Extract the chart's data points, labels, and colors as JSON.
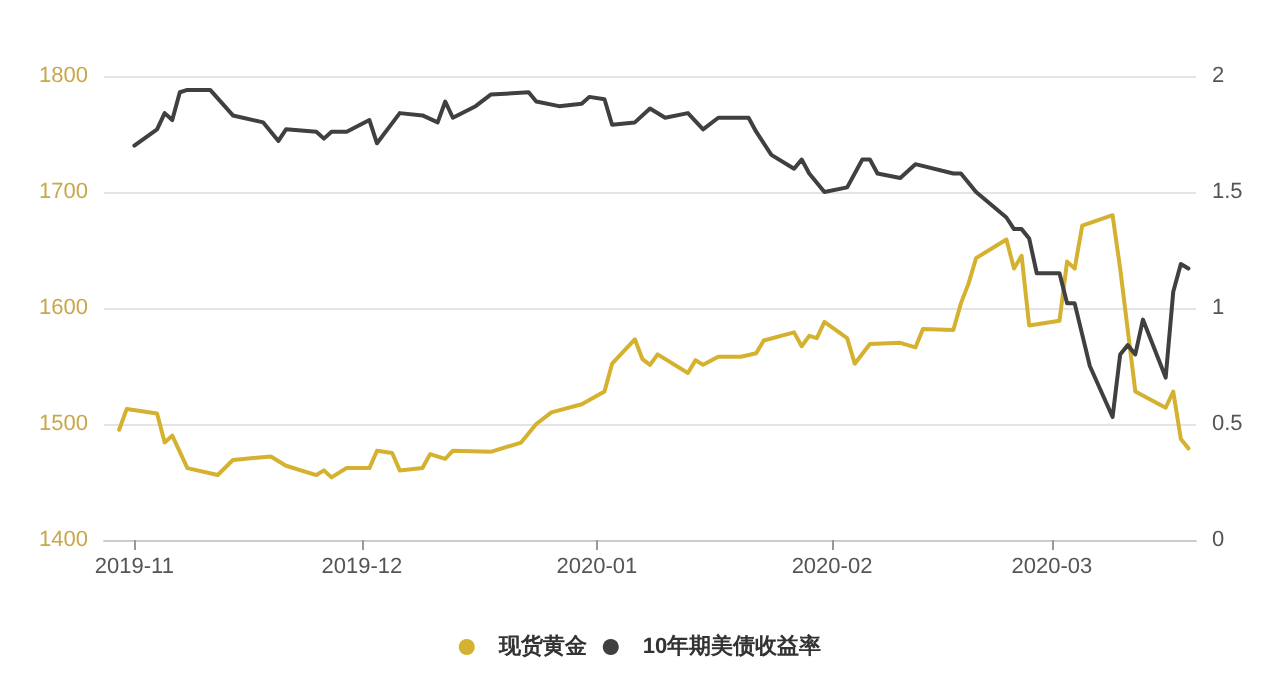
{
  "chart_data": {
    "type": "line",
    "xlim": [
      "2019-10-28",
      "2020-03-20"
    ],
    "xticks": [
      {
        "value": "2019-11-01",
        "label": "2019-11"
      },
      {
        "value": "2019-12-01",
        "label": "2019-12"
      },
      {
        "value": "2020-01-01",
        "label": "2020-01"
      },
      {
        "value": "2020-02-01",
        "label": "2020-02"
      },
      {
        "value": "2020-03-01",
        "label": "2020-03"
      }
    ],
    "ylim": [
      1400,
      1800
    ],
    "yticks": [
      1400,
      1500,
      1600,
      1700,
      1800
    ],
    "y2lim": [
      0,
      2
    ],
    "y2ticks": [
      0,
      0.5,
      1,
      1.5,
      2
    ],
    "grid": "y",
    "legend": "bottom",
    "marker": "none",
    "line_style": "solid",
    "series": [
      {
        "name": "现货黄金",
        "color": "#d4b12f",
        "x": [
          "2019-10-30",
          "2019-10-31",
          "2019-11-04",
          "2019-11-05",
          "2019-11-06",
          "2019-11-08",
          "2019-11-12",
          "2019-11-14",
          "2019-11-19",
          "2019-11-21",
          "2019-11-25",
          "2019-11-26",
          "2019-11-27",
          "2019-11-29",
          "2019-12-02",
          "2019-12-03",
          "2019-12-05",
          "2019-12-06",
          "2019-12-09",
          "2019-12-10",
          "2019-12-12",
          "2019-12-13",
          "2019-12-18",
          "2019-12-22",
          "2019-12-24",
          "2019-12-26",
          "2019-12-30",
          "2020-01-02",
          "2020-01-03",
          "2020-01-06",
          "2020-01-07",
          "2020-01-08",
          "2020-01-09",
          "2020-01-13",
          "2020-01-14",
          "2020-01-15",
          "2020-01-17",
          "2020-01-20",
          "2020-01-22",
          "2020-01-23",
          "2020-01-27",
          "2020-01-28",
          "2020-01-29",
          "2020-01-30",
          "2020-01-31",
          "2020-02-03",
          "2020-02-04",
          "2020-02-06",
          "2020-02-10",
          "2020-02-12",
          "2020-02-13",
          "2020-02-17",
          "2020-02-18",
          "2020-02-19",
          "2020-02-20",
          "2020-02-24",
          "2020-02-25",
          "2020-02-26",
          "2020-02-27",
          "2020-03-02",
          "2020-03-03",
          "2020-03-04",
          "2020-03-05",
          "2020-03-09",
          "2020-03-10",
          "2020-03-12",
          "2020-03-16",
          "2020-03-17",
          "2020-03-18",
          "2020-03-19"
        ],
        "values": [
          1495,
          1513,
          1509,
          1484,
          1490,
          1462,
          1456,
          1469,
          1472,
          1464,
          1456,
          1460,
          1454,
          1462,
          1462,
          1477,
          1475,
          1460,
          1462,
          1474,
          1470,
          1477,
          1476,
          1484,
          1500,
          1510,
          1517,
          1528,
          1552,
          1573,
          1556,
          1551,
          1560,
          1544,
          1555,
          1551,
          1558,
          1558,
          1561,
          1572,
          1579,
          1567,
          1576,
          1574,
          1588,
          1574,
          1552,
          1569,
          1570,
          1566,
          1582,
          1581,
          1604,
          1621,
          1643,
          1659,
          1634,
          1645,
          1585,
          1589,
          1640,
          1634,
          1671,
          1680,
          1634,
          1528,
          1514,
          1528,
          1487,
          1479
        ]
      },
      {
        "name": "10年期美债收益率",
        "color": "#404040",
        "axis": "y2",
        "x": [
          "2019-11-01",
          "2019-11-04",
          "2019-11-05",
          "2019-11-06",
          "2019-11-07",
          "2019-11-08",
          "2019-11-11",
          "2019-11-14",
          "2019-11-18",
          "2019-11-20",
          "2019-11-21",
          "2019-11-25",
          "2019-11-26",
          "2019-11-27",
          "2019-11-29",
          "2019-12-02",
          "2019-12-03",
          "2019-12-06",
          "2019-12-09",
          "2019-12-11",
          "2019-12-12",
          "2019-12-13",
          "2019-12-16",
          "2019-12-18",
          "2019-12-23",
          "2019-12-24",
          "2019-12-27",
          "2019-12-30",
          "2019-12-31",
          "2020-01-02",
          "2020-01-03",
          "2020-01-06",
          "2020-01-08",
          "2020-01-10",
          "2020-01-13",
          "2020-01-15",
          "2020-01-17",
          "2020-01-21",
          "2020-01-22",
          "2020-01-24",
          "2020-01-27",
          "2020-01-28",
          "2020-01-29",
          "2020-01-31",
          "2020-02-03",
          "2020-02-05",
          "2020-02-06",
          "2020-02-07",
          "2020-02-10",
          "2020-02-12",
          "2020-02-17",
          "2020-02-18",
          "2020-02-20",
          "2020-02-24",
          "2020-02-25",
          "2020-02-26",
          "2020-02-27",
          "2020-02-28",
          "2020-03-02",
          "2020-03-03",
          "2020-03-04",
          "2020-03-06",
          "2020-03-09",
          "2020-03-10",
          "2020-03-11",
          "2020-03-12",
          "2020-03-13",
          "2020-03-16",
          "2020-03-17",
          "2020-03-18",
          "2020-03-19"
        ],
        "values": [
          1.7,
          1.77,
          1.84,
          1.81,
          1.93,
          1.94,
          1.94,
          1.83,
          1.8,
          1.72,
          1.77,
          1.76,
          1.73,
          1.76,
          1.76,
          1.81,
          1.71,
          1.84,
          1.83,
          1.8,
          1.89,
          1.82,
          1.87,
          1.92,
          1.93,
          1.89,
          1.87,
          1.88,
          1.91,
          1.9,
          1.79,
          1.8,
          1.86,
          1.82,
          1.84,
          1.77,
          1.82,
          1.82,
          1.76,
          1.66,
          1.6,
          1.64,
          1.58,
          1.5,
          1.52,
          1.64,
          1.64,
          1.58,
          1.56,
          1.62,
          1.58,
          1.58,
          1.5,
          1.39,
          1.34,
          1.34,
          1.3,
          1.15,
          1.15,
          1.02,
          1.02,
          0.75,
          0.53,
          0.8,
          0.84,
          0.8,
          0.95,
          0.7,
          1.07,
          1.19,
          1.17
        ]
      }
    ]
  }
}
